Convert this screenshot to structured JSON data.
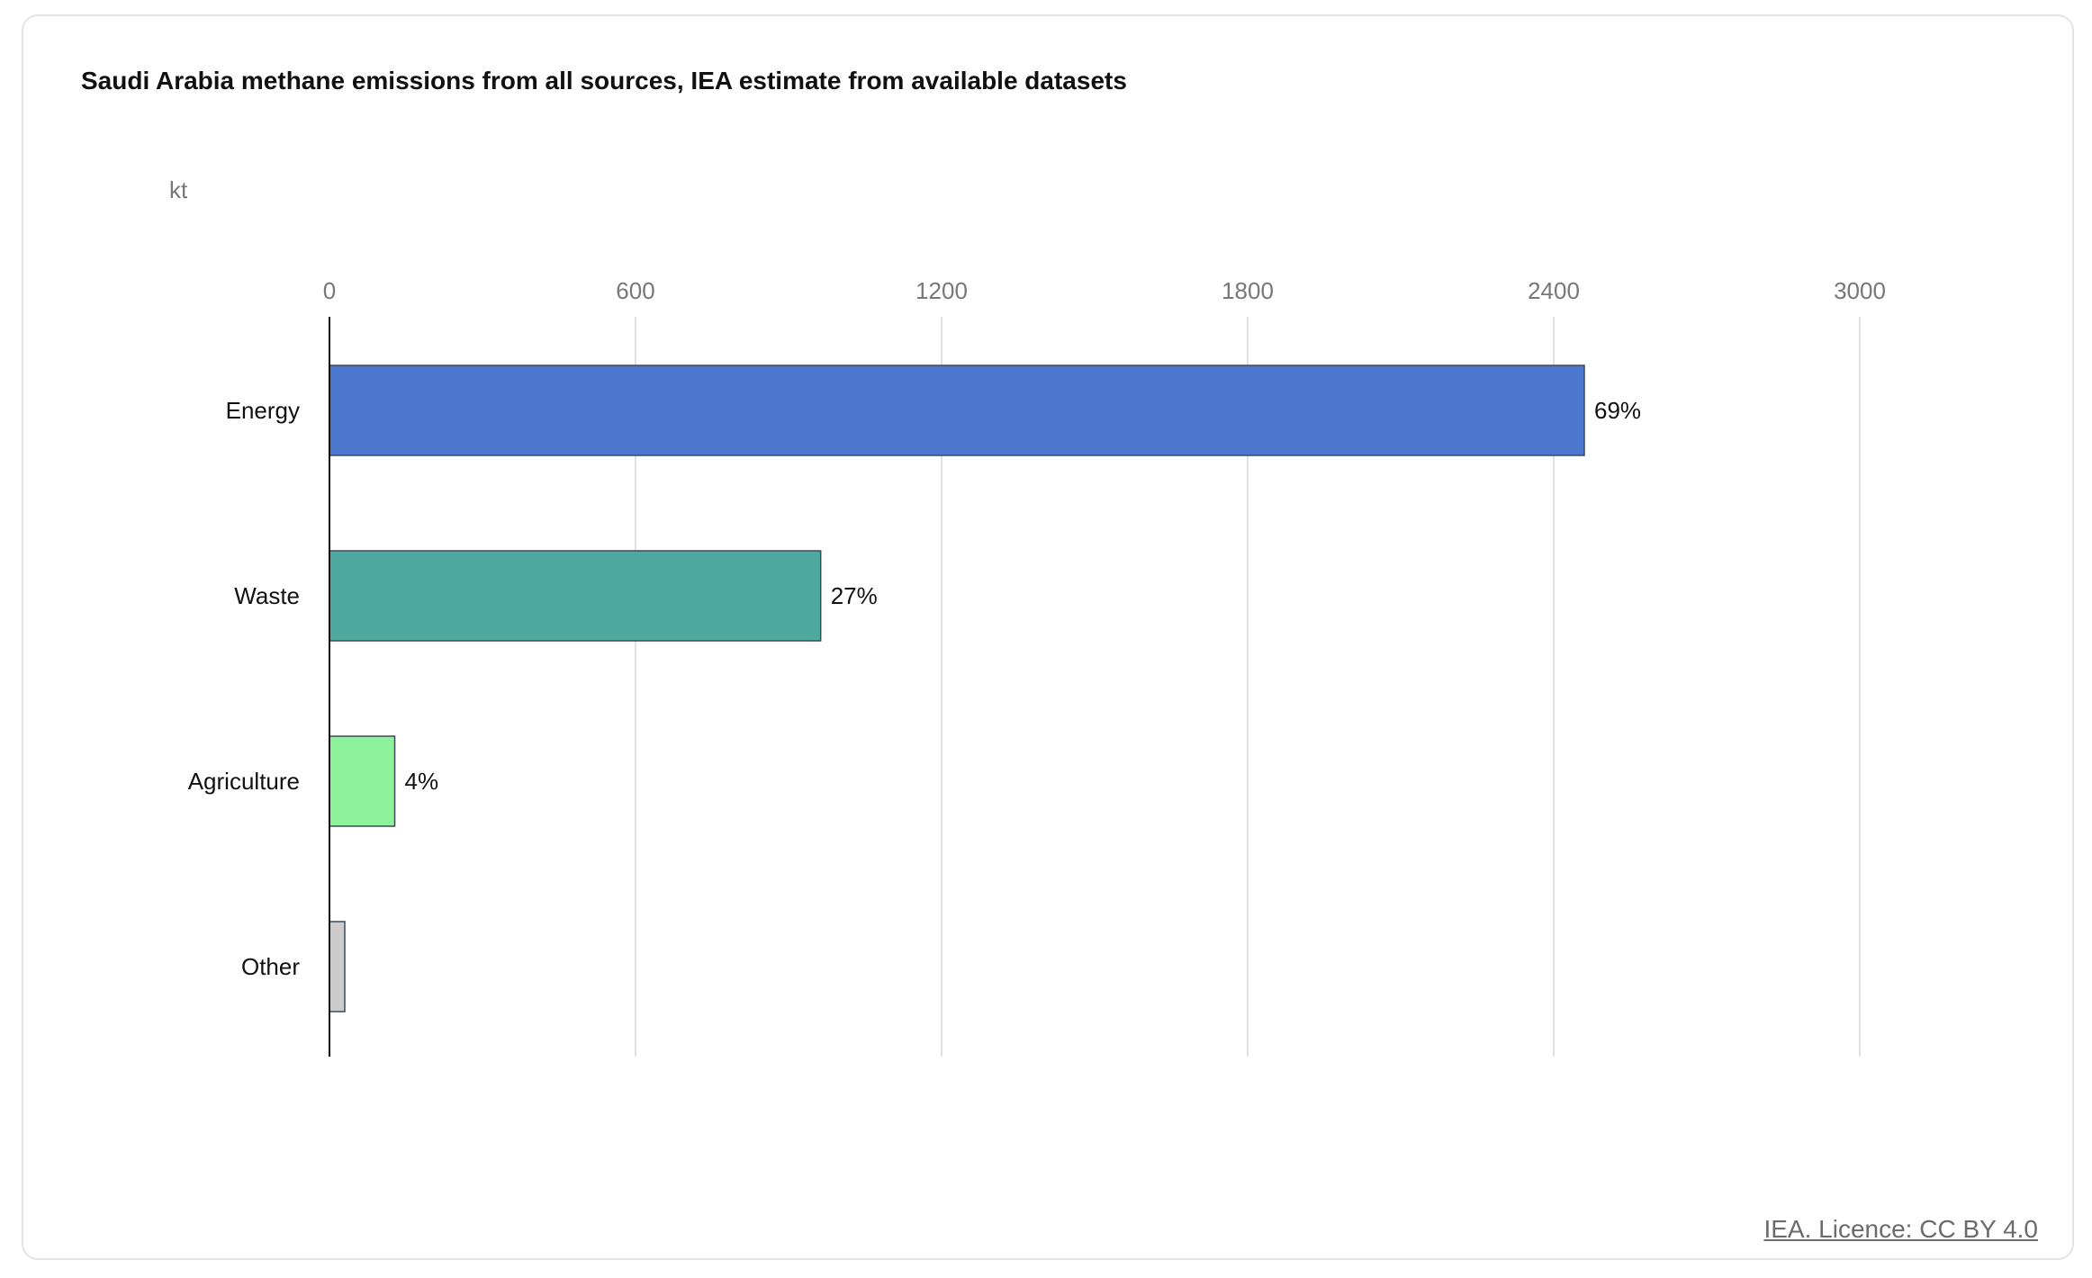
{
  "chart": {
    "title": "Saudi Arabia methane emissions from all sources, IEA estimate from available datasets",
    "unit": "kt",
    "credit": "IEA. Licence: CC BY 4.0"
  },
  "chart_data": {
    "type": "bar",
    "orientation": "horizontal",
    "title": "Saudi Arabia methane emissions from all sources, IEA estimate from available datasets",
    "xlabel": "kt",
    "ylabel": "",
    "xlim": [
      0,
      3000
    ],
    "x_ticks": [
      0,
      600,
      1200,
      1800,
      2400,
      3000
    ],
    "grid": true,
    "legend": "none",
    "categories": [
      "Energy",
      "Waste",
      "Agriculture",
      "Other"
    ],
    "values": [
      2460,
      963,
      128,
      30
    ],
    "data_labels": [
      "69%",
      "27%",
      "4%",
      ""
    ],
    "colors": [
      "#4b78ce",
      "#4ea9a0",
      "#8ef29a",
      "#cccccc"
    ]
  }
}
